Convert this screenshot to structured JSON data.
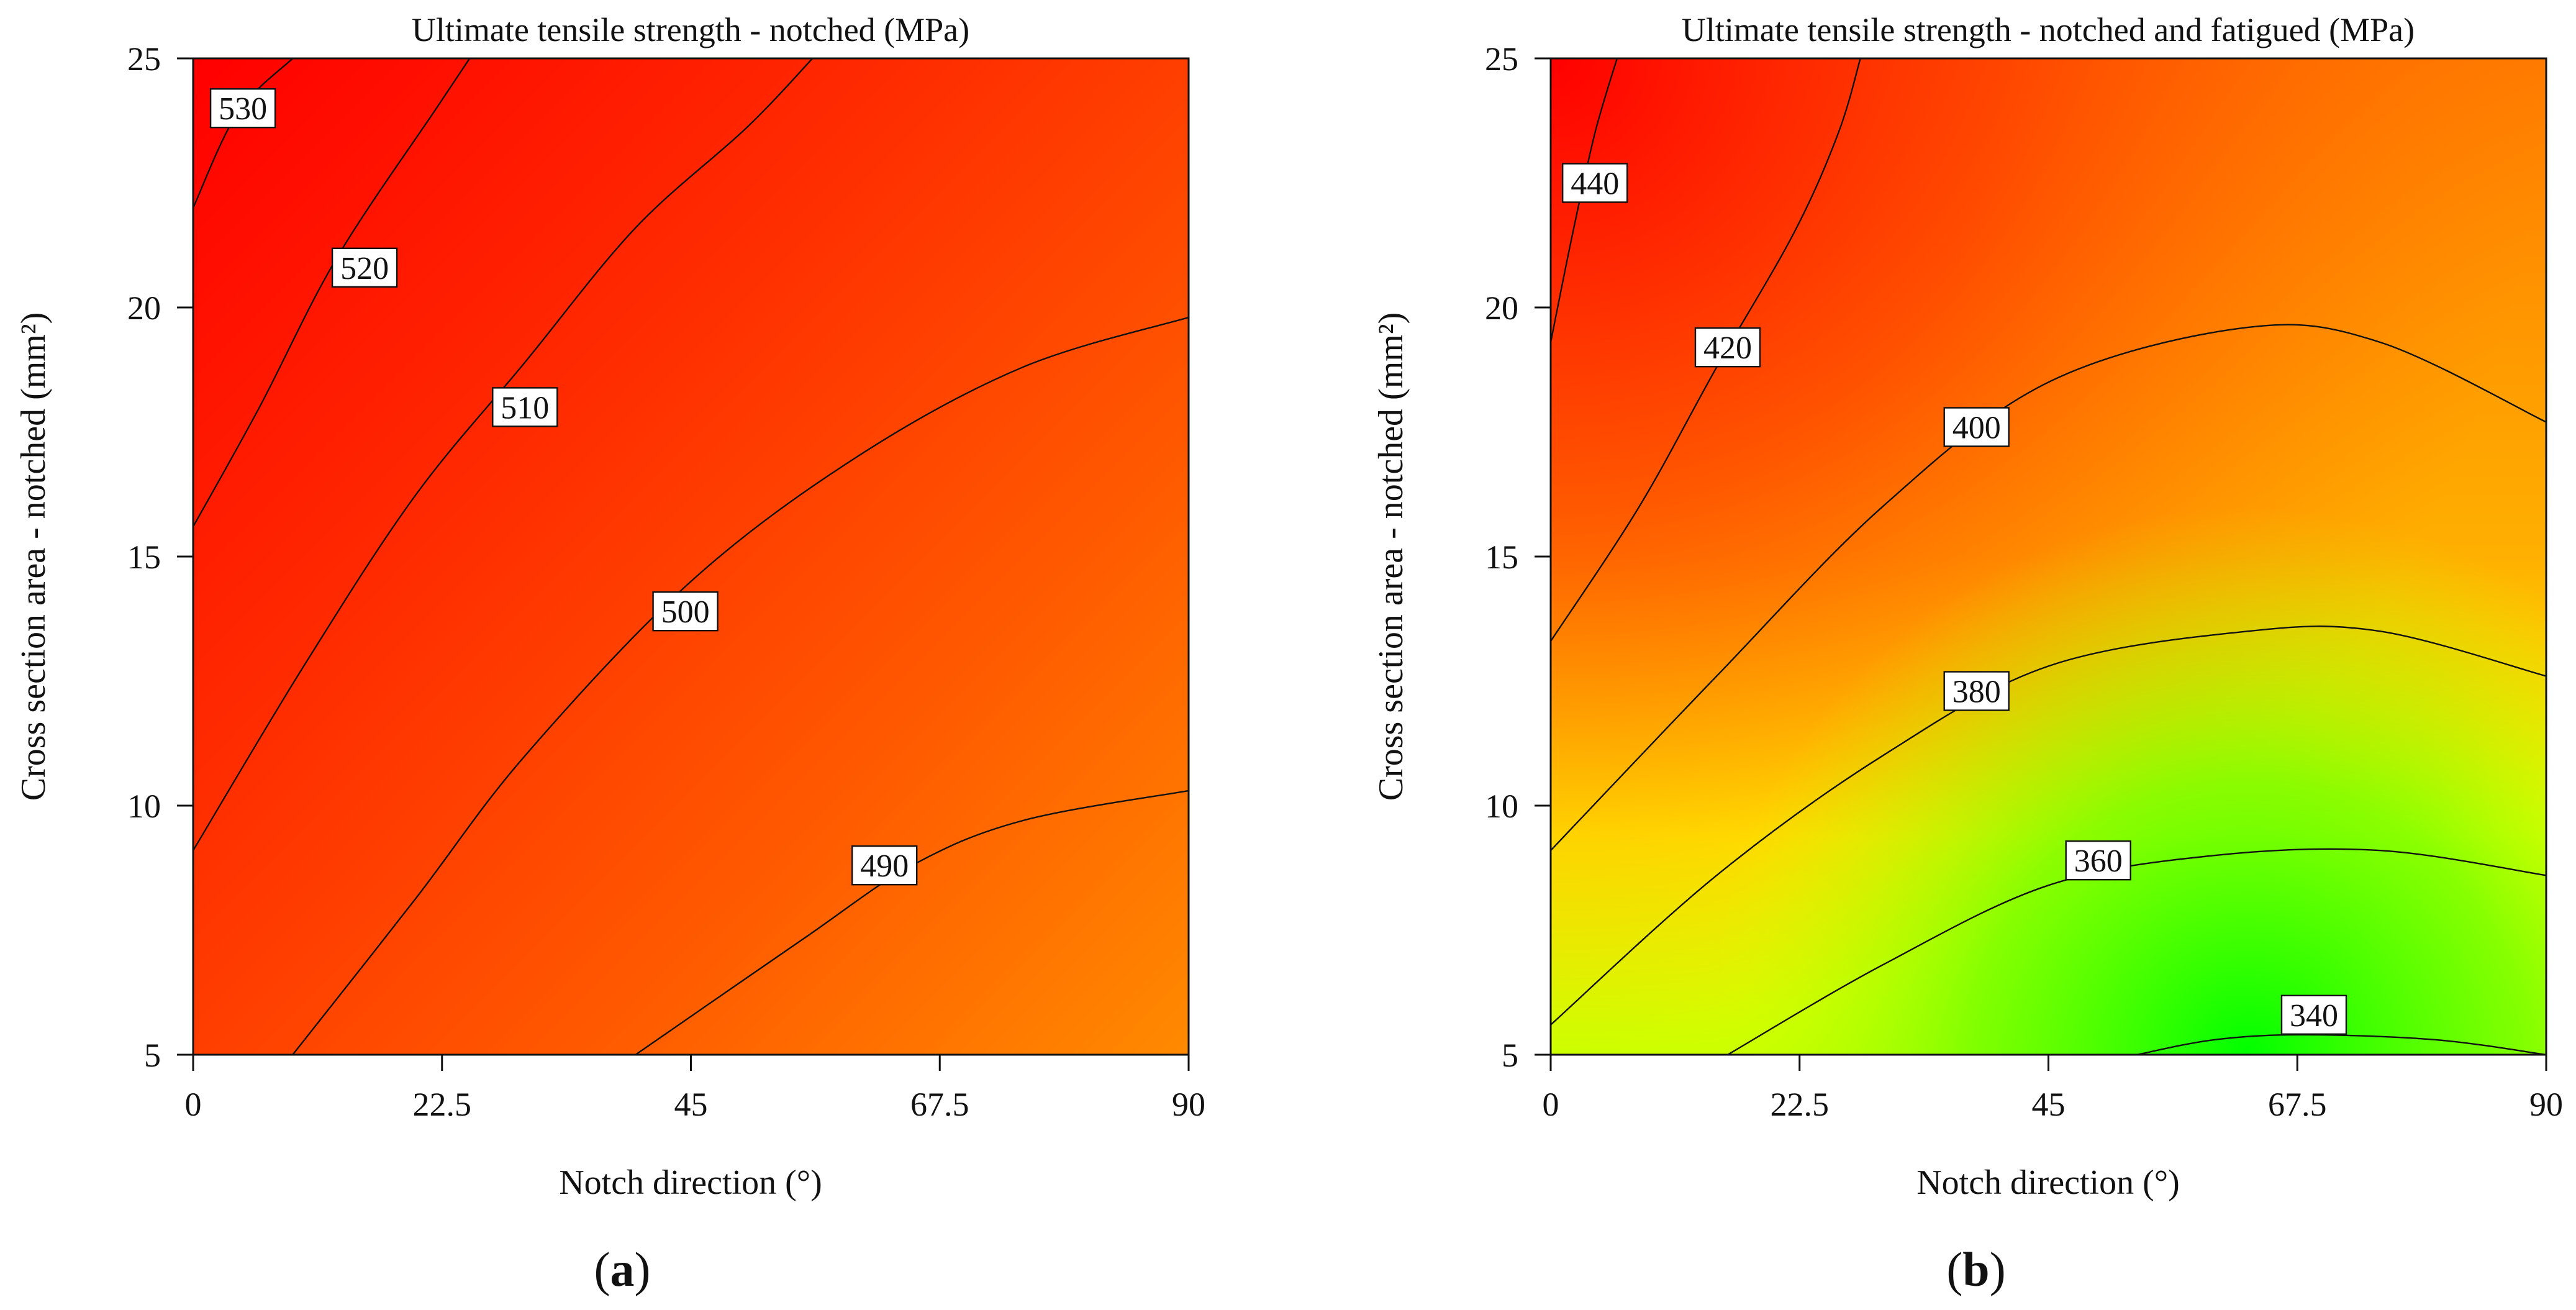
{
  "chart_data": [
    {
      "type": "contour",
      "panel": "a",
      "title": "Ultimate tensile strength -  notched (MPa)",
      "xlabel": "Notch direction (°)",
      "ylabel": "Cross section area  -  notched (mm²)",
      "x_ticks": [
        "0",
        "22.5",
        "45",
        "67.5",
        "90"
      ],
      "y_ticks": [
        "5",
        "10",
        "15",
        "20",
        "25"
      ],
      "xlim": [
        0,
        90
      ],
      "ylim": [
        5,
        25
      ],
      "color_scale": [
        "#ff0000",
        "#ff8000"
      ],
      "contours": [
        {
          "level": "530",
          "points": [
            [
              0,
              22.0
            ],
            [
              4,
              23.9
            ],
            [
              9,
              25.0
            ]
          ],
          "label_at": [
            4.5,
            24.0
          ]
        },
        {
          "level": "520",
          "points": [
            [
              0,
              15.6
            ],
            [
              6,
              18.0
            ],
            [
              13,
              21.0
            ],
            [
              22,
              24.0
            ],
            [
              25,
              25.0
            ]
          ],
          "label_at": [
            15.5,
            20.8
          ]
        },
        {
          "level": "510",
          "points": [
            [
              0,
              9.1
            ],
            [
              10,
              12.8
            ],
            [
              20,
              16.2
            ],
            [
              30,
              18.9
            ],
            [
              40,
              21.6
            ],
            [
              50,
              23.6
            ],
            [
              56,
              25.0
            ]
          ],
          "label_at": [
            30,
            18.0
          ]
        },
        {
          "level": "500",
          "points": [
            [
              9,
              5.0
            ],
            [
              20,
              8.1
            ],
            [
              30,
              11.0
            ],
            [
              45,
              14.5
            ],
            [
              60,
              17.0
            ],
            [
              75,
              18.8
            ],
            [
              90,
              19.8
            ]
          ],
          "label_at": [
            44.5,
            13.9
          ]
        },
        {
          "level": "490",
          "points": [
            [
              40,
              5.0
            ],
            [
              55,
              7.3
            ],
            [
              65,
              8.8
            ],
            [
              75,
              9.7
            ],
            [
              90,
              10.3
            ]
          ],
          "label_at": [
            62.5,
            8.8
          ]
        }
      ]
    },
    {
      "type": "contour",
      "panel": "b",
      "title": "Ultimate tensile strength -  notched and fatigued (MPa)",
      "xlabel": "Notch direction (°)",
      "ylabel": "Cross section area  -  notched (mm²)",
      "x_ticks": [
        "0",
        "22.5",
        "45",
        "67.5",
        "90"
      ],
      "y_ticks": [
        "5",
        "10",
        "15",
        "20",
        "25"
      ],
      "xlim": [
        0,
        90
      ],
      "ylim": [
        5,
        25
      ],
      "color_scale": [
        "#ff0000",
        "#ff8000",
        "#ffff00",
        "#00ff00"
      ],
      "contours": [
        {
          "level": "440",
          "points": [
            [
              0,
              19.3
            ],
            [
              2,
              21.5
            ],
            [
              4,
              23.5
            ],
            [
              6,
              25.0
            ]
          ],
          "label_at": [
            4,
            22.5
          ]
        },
        {
          "level": "420",
          "points": [
            [
              0,
              13.3
            ],
            [
              8,
              16.0
            ],
            [
              15,
              18.8
            ],
            [
              22,
              21.5
            ],
            [
              26,
              23.5
            ],
            [
              28,
              25.0
            ]
          ],
          "label_at": [
            16,
            19.2
          ]
        },
        {
          "level": "400",
          "points": [
            [
              0,
              9.1
            ],
            [
              15,
              12.6
            ],
            [
              30,
              16.0
            ],
            [
              45,
              18.5
            ],
            [
              63,
              19.6
            ],
            [
              75,
              19.3
            ],
            [
              90,
              17.7
            ]
          ],
          "label_at": [
            38.5,
            17.6
          ]
        },
        {
          "level": "380",
          "points": [
            [
              0,
              5.6
            ],
            [
              15,
              8.6
            ],
            [
              30,
              11.0
            ],
            [
              45,
              12.8
            ],
            [
              63,
              13.5
            ],
            [
              75,
              13.5
            ],
            [
              90,
              12.6
            ]
          ],
          "label_at": [
            38.5,
            12.3
          ]
        },
        {
          "level": "360",
          "points": [
            [
              16,
              5.0
            ],
            [
              30,
              6.8
            ],
            [
              45,
              8.4
            ],
            [
              60,
              9.0
            ],
            [
              75,
              9.1
            ],
            [
              90,
              8.6
            ]
          ],
          "label_at": [
            49.5,
            8.9
          ]
        },
        {
          "level": "340",
          "points": [
            [
              53,
              5.0
            ],
            [
              60,
              5.3
            ],
            [
              68,
              5.4
            ],
            [
              80,
              5.3
            ],
            [
              90,
              5.0
            ]
          ],
          "label_at": [
            69,
            5.8
          ]
        }
      ]
    }
  ],
  "panel_captions": [
    "a",
    "b"
  ]
}
